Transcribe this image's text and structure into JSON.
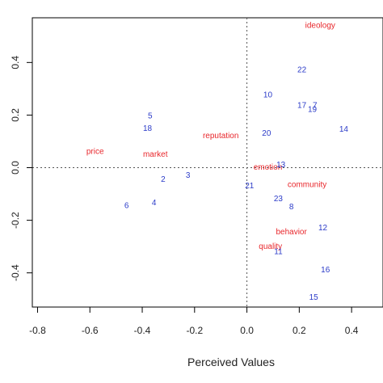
{
  "chart_data": {
    "type": "scatter",
    "title": "",
    "xlabel": "Perceived Values",
    "ylabel": "",
    "xlim": [
      -0.82,
      0.52
    ],
    "ylim": [
      -0.53,
      0.57
    ],
    "grid": false,
    "reference_lines": {
      "x": 0,
      "y": 0
    },
    "x_ticks": [
      {
        "value": -0.8,
        "label": "-0.8"
      },
      {
        "value": -0.6,
        "label": "-0.6"
      },
      {
        "value": -0.4,
        "label": "-0.4"
      },
      {
        "value": -0.2,
        "label": "-0.2"
      },
      {
        "value": 0.0,
        "label": "0.0"
      },
      {
        "value": 0.2,
        "label": "0.2"
      },
      {
        "value": 0.4,
        "label": "0.4"
      }
    ],
    "y_ticks": [
      {
        "value": -0.4,
        "label": "-0.4"
      },
      {
        "value": -0.2,
        "label": "-0.2"
      },
      {
        "value": 0.0,
        "label": "0.0"
      },
      {
        "value": 0.2,
        "label": "0.2"
      },
      {
        "value": 0.4,
        "label": "0.4"
      }
    ],
    "series": [
      {
        "color": "#e8262b",
        "points": [
          {
            "label": "ideology",
            "x": 0.28,
            "y": 0.54
          },
          {
            "label": "price",
            "x": -0.58,
            "y": 0.06
          },
          {
            "label": "market",
            "x": -0.35,
            "y": 0.05
          },
          {
            "label": "reputation",
            "x": -0.1,
            "y": 0.12
          },
          {
            "label": "emotion",
            "x": 0.08,
            "y": 0.0
          },
          {
            "label": "community",
            "x": 0.23,
            "y": -0.065
          },
          {
            "label": "behavior",
            "x": 0.17,
            "y": -0.245
          },
          {
            "label": "quality",
            "x": 0.09,
            "y": -0.3
          }
        ]
      },
      {
        "color": "#2b3bc8",
        "points": [
          {
            "label": "22",
            "x": 0.21,
            "y": 0.37
          },
          {
            "label": "10",
            "x": 0.08,
            "y": 0.275
          },
          {
            "label": "17",
            "x": 0.21,
            "y": 0.235
          },
          {
            "label": "7",
            "x": 0.26,
            "y": 0.235
          },
          {
            "label": "19",
            "x": 0.25,
            "y": 0.22
          },
          {
            "label": "14",
            "x": 0.37,
            "y": 0.145
          },
          {
            "label": "20",
            "x": 0.075,
            "y": 0.13
          },
          {
            "label": "5",
            "x": -0.37,
            "y": 0.195
          },
          {
            "label": "18",
            "x": -0.38,
            "y": 0.148
          },
          {
            "label": "13",
            "x": 0.13,
            "y": 0.01
          },
          {
            "label": "3",
            "x": -0.225,
            "y": -0.03
          },
          {
            "label": "2",
            "x": -0.32,
            "y": -0.045
          },
          {
            "label": "21",
            "x": 0.01,
            "y": -0.07
          },
          {
            "label": "23",
            "x": 0.12,
            "y": -0.12
          },
          {
            "label": "8",
            "x": 0.17,
            "y": -0.15
          },
          {
            "label": "6",
            "x": -0.46,
            "y": -0.145
          },
          {
            "label": "4",
            "x": -0.355,
            "y": -0.135
          },
          {
            "label": "12",
            "x": 0.29,
            "y": -0.23
          },
          {
            "label": "11",
            "x": 0.12,
            "y": -0.32
          },
          {
            "label": "16",
            "x": 0.3,
            "y": -0.39
          },
          {
            "label": "15",
            "x": 0.255,
            "y": -0.495
          }
        ]
      }
    ]
  }
}
